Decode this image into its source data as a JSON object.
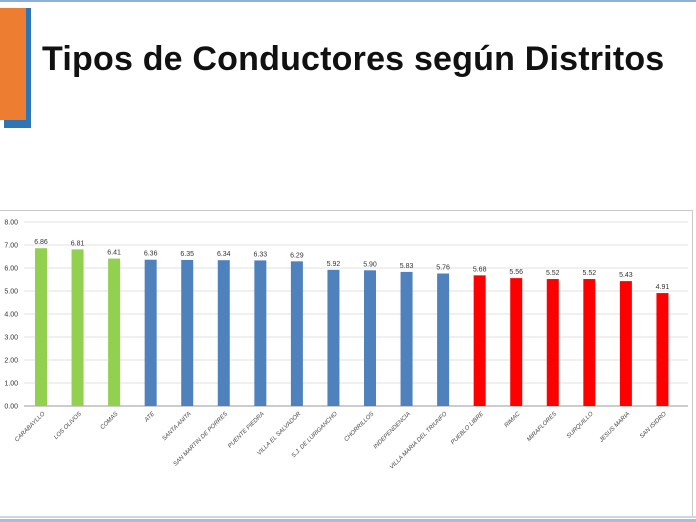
{
  "slide": {
    "title": "Tipos de Conductores según Distritos"
  },
  "colors": {
    "accent_orange": "#ed7d31",
    "accent_blue": "#2e75b6",
    "green": "#92d050",
    "blue": "#4f81bd",
    "red": "#ff0000"
  },
  "chart_data": {
    "type": "bar",
    "categories": [
      "CARABAYLLO",
      "LOS OLIVOS",
      "COMAS",
      "ATE",
      "SANTA ANITA",
      "SAN MARTIN DE PORRES",
      "PUENTE PIEDRA",
      "VILLA EL SALVADOR",
      "S.J. DE LURIGANCHO",
      "CHORRILLOS",
      "INDEPENDENCIA",
      "VILLA MARIA DEL TRIUNFO",
      "PUEBLO LIBRE",
      "RIMAC",
      "MIRAFLORES",
      "SURQUILLO",
      "JESUS MARIA",
      "SAN ISIDRO"
    ],
    "values": [
      6.86,
      6.81,
      6.41,
      6.36,
      6.35,
      6.34,
      6.33,
      6.29,
      5.92,
      5.9,
      5.83,
      5.76,
      5.68,
      5.56,
      5.52,
      5.52,
      5.43,
      4.91
    ],
    "value_labels": [
      "6.86",
      "6.81",
      "6.41",
      "6.36",
      "6.35",
      "6.34",
      "6.33",
      "6.29",
      "5.92",
      "5.90",
      "5.83",
      "5.76",
      "5.68",
      "5.56",
      "5.52",
      "5.52",
      "5.43",
      "4.91"
    ],
    "bar_colors": [
      "#92d050",
      "#92d050",
      "#92d050",
      "#4f81bd",
      "#4f81bd",
      "#4f81bd",
      "#4f81bd",
      "#4f81bd",
      "#4f81bd",
      "#4f81bd",
      "#4f81bd",
      "#4f81bd",
      "#ff0000",
      "#ff0000",
      "#ff0000",
      "#ff0000",
      "#ff0000",
      "#ff0000"
    ],
    "y_ticks": [
      "0.00",
      "1.00",
      "2.00",
      "3.00",
      "4.00",
      "5.00",
      "6.00",
      "7.00",
      "8.00"
    ],
    "ylim": [
      0,
      8
    ],
    "grid": true,
    "legend": "none"
  }
}
